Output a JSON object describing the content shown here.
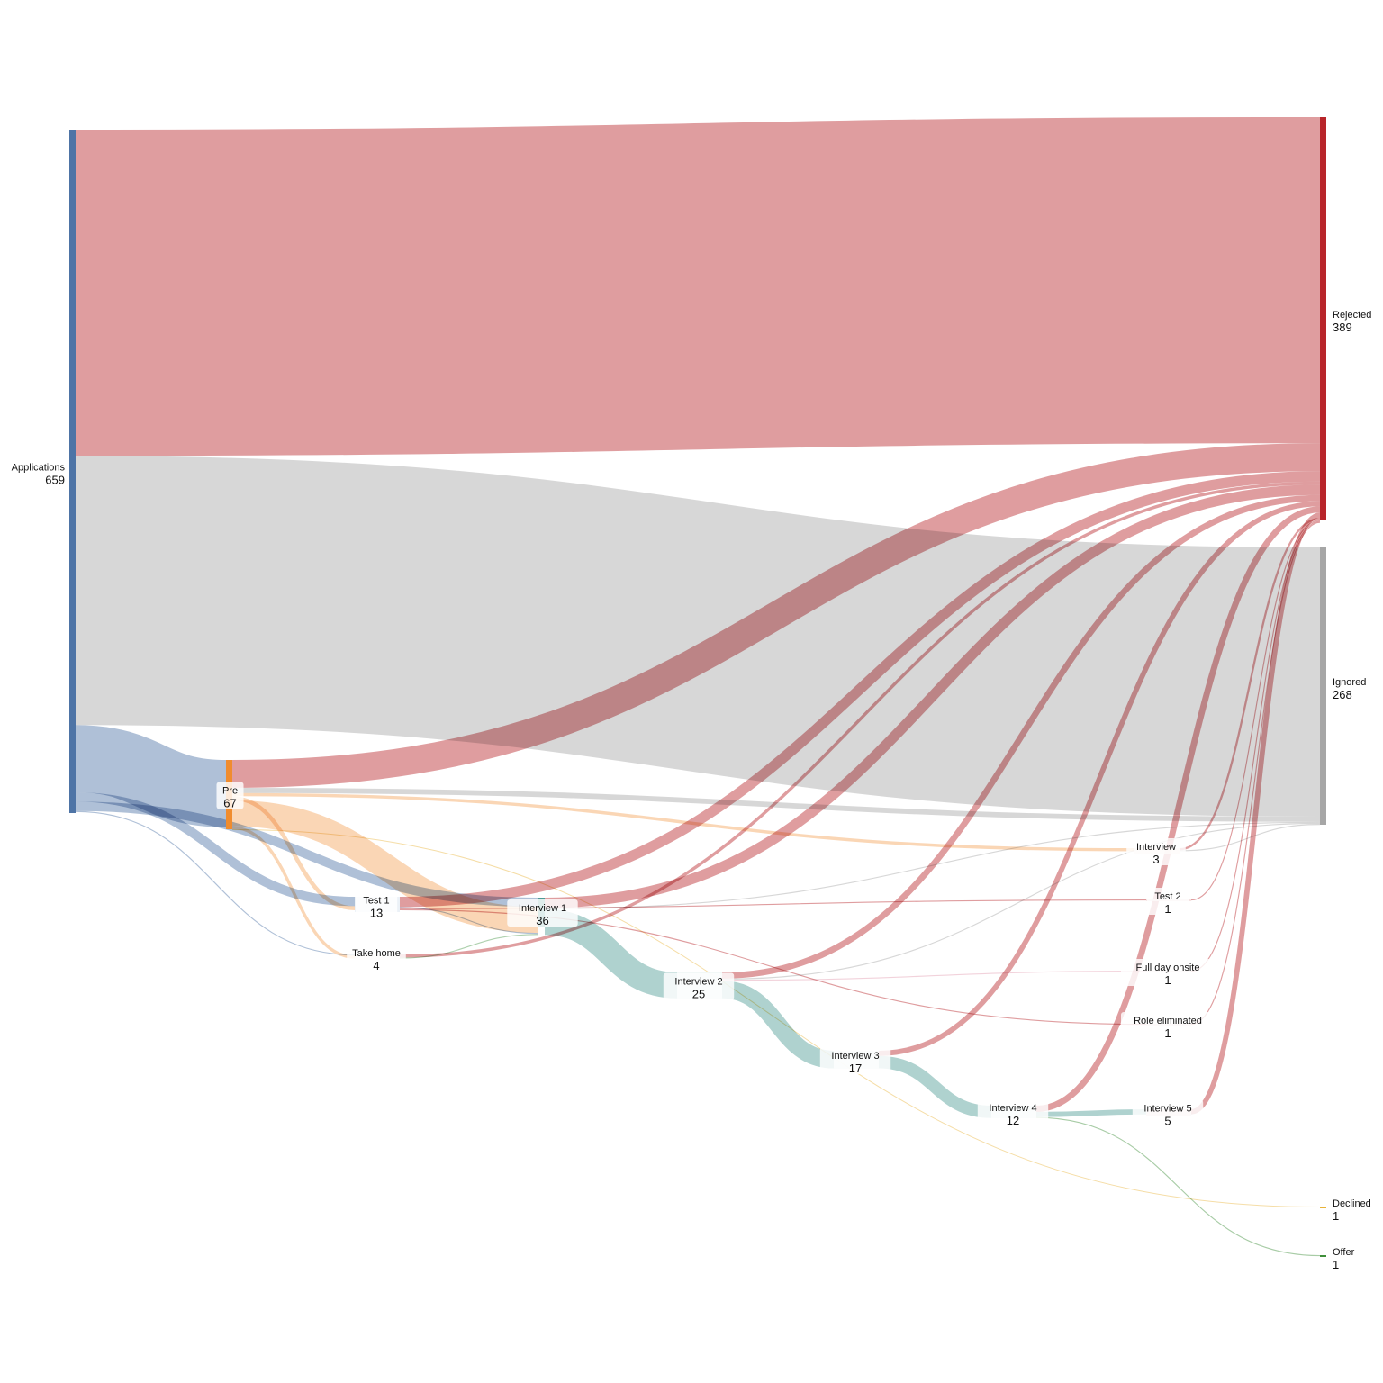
{
  "title": "",
  "colors": {
    "rejected": "#b8252a",
    "ignored": "#a6a6a6",
    "applications": "#4e74a6",
    "pre": "#f08c2e",
    "interview_chain": "#4d9b95",
    "offer": "#3f8f3a",
    "declined": "#e8b33a"
  },
  "nodes": [
    {
      "id": "applications",
      "name": "Applications",
      "value": 659
    },
    {
      "id": "rejected",
      "name": "Rejected",
      "value": 389
    },
    {
      "id": "ignored",
      "name": "Ignored",
      "value": 268
    },
    {
      "id": "pre",
      "name": "Pre",
      "value": 67
    },
    {
      "id": "test1",
      "name": "Test 1",
      "value": 13
    },
    {
      "id": "takehome",
      "name": "Take home",
      "value": 4
    },
    {
      "id": "interview1",
      "name": "Interview 1",
      "value": 36
    },
    {
      "id": "interview2",
      "name": "Interview 2",
      "value": 25
    },
    {
      "id": "interview3",
      "name": "Interview 3",
      "value": 17
    },
    {
      "id": "interview4",
      "name": "Interview 4",
      "value": 12
    },
    {
      "id": "interview",
      "name": "Interview",
      "value": 3
    },
    {
      "id": "test2",
      "name": "Test 2",
      "value": 1
    },
    {
      "id": "fullday",
      "name": "Full day onsite",
      "value": 1
    },
    {
      "id": "roleelim",
      "name": "Role eliminated",
      "value": 1
    },
    {
      "id": "interview5",
      "name": "Interview 5",
      "value": 5
    },
    {
      "id": "declined",
      "name": "Declined",
      "value": 1
    },
    {
      "id": "offer",
      "name": "Offer",
      "value": 1
    }
  ],
  "links": [
    {
      "source": "applications",
      "target": "rejected",
      "value": 315
    },
    {
      "source": "applications",
      "target": "ignored",
      "value": 260
    },
    {
      "source": "applications",
      "target": "pre",
      "value": 65
    },
    {
      "source": "applications",
      "target": "test1",
      "value": 9
    },
    {
      "source": "applications",
      "target": "interview1",
      "value": 9
    },
    {
      "source": "applications",
      "target": "takehome",
      "value": 1
    },
    {
      "source": "pre",
      "target": "rejected",
      "value": 27
    },
    {
      "source": "pre",
      "target": "ignored",
      "value": 5
    },
    {
      "source": "pre",
      "target": "interview1",
      "value": 25
    },
    {
      "source": "pre",
      "target": "interview",
      "value": 3
    },
    {
      "source": "pre",
      "target": "test1",
      "value": 4
    },
    {
      "source": "pre",
      "target": "takehome",
      "value": 3
    },
    {
      "source": "pre",
      "target": "declined",
      "value": 0.5
    },
    {
      "source": "test1",
      "target": "rejected",
      "value": 10
    },
    {
      "source": "test1",
      "target": "interview1",
      "value": 1
    },
    {
      "source": "test1",
      "target": "test2",
      "value": 1
    },
    {
      "source": "test1",
      "target": "roleelim",
      "value": 1
    },
    {
      "source": "takehome",
      "target": "rejected",
      "value": 3
    },
    {
      "source": "takehome",
      "target": "interview1",
      "value": 1
    },
    {
      "source": "interview1",
      "target": "rejected",
      "value": 10
    },
    {
      "source": "interview1",
      "target": "interview2",
      "value": 25
    },
    {
      "source": "interview1",
      "target": "ignored",
      "value": 1
    },
    {
      "source": "interview2",
      "target": "rejected",
      "value": 6
    },
    {
      "source": "interview2",
      "target": "interview3",
      "value": 17
    },
    {
      "source": "interview2",
      "target": "ignored",
      "value": 1
    },
    {
      "source": "interview2",
      "target": "fullday",
      "value": 1
    },
    {
      "source": "interview3",
      "target": "rejected",
      "value": 5
    },
    {
      "source": "interview3",
      "target": "interview4",
      "value": 12
    },
    {
      "source": "interview4",
      "target": "rejected",
      "value": 6
    },
    {
      "source": "interview4",
      "target": "interview5",
      "value": 5
    },
    {
      "source": "interview4",
      "target": "offer",
      "value": 1
    },
    {
      "source": "interview5",
      "target": "rejected",
      "value": 5
    },
    {
      "source": "interview",
      "target": "rejected",
      "value": 2
    },
    {
      "source": "interview",
      "target": "ignored",
      "value": 1
    },
    {
      "source": "test2",
      "target": "rejected",
      "value": 1
    },
    {
      "source": "fullday",
      "target": "rejected",
      "value": 1
    },
    {
      "source": "roleelim",
      "target": "rejected",
      "value": 1
    }
  ]
}
